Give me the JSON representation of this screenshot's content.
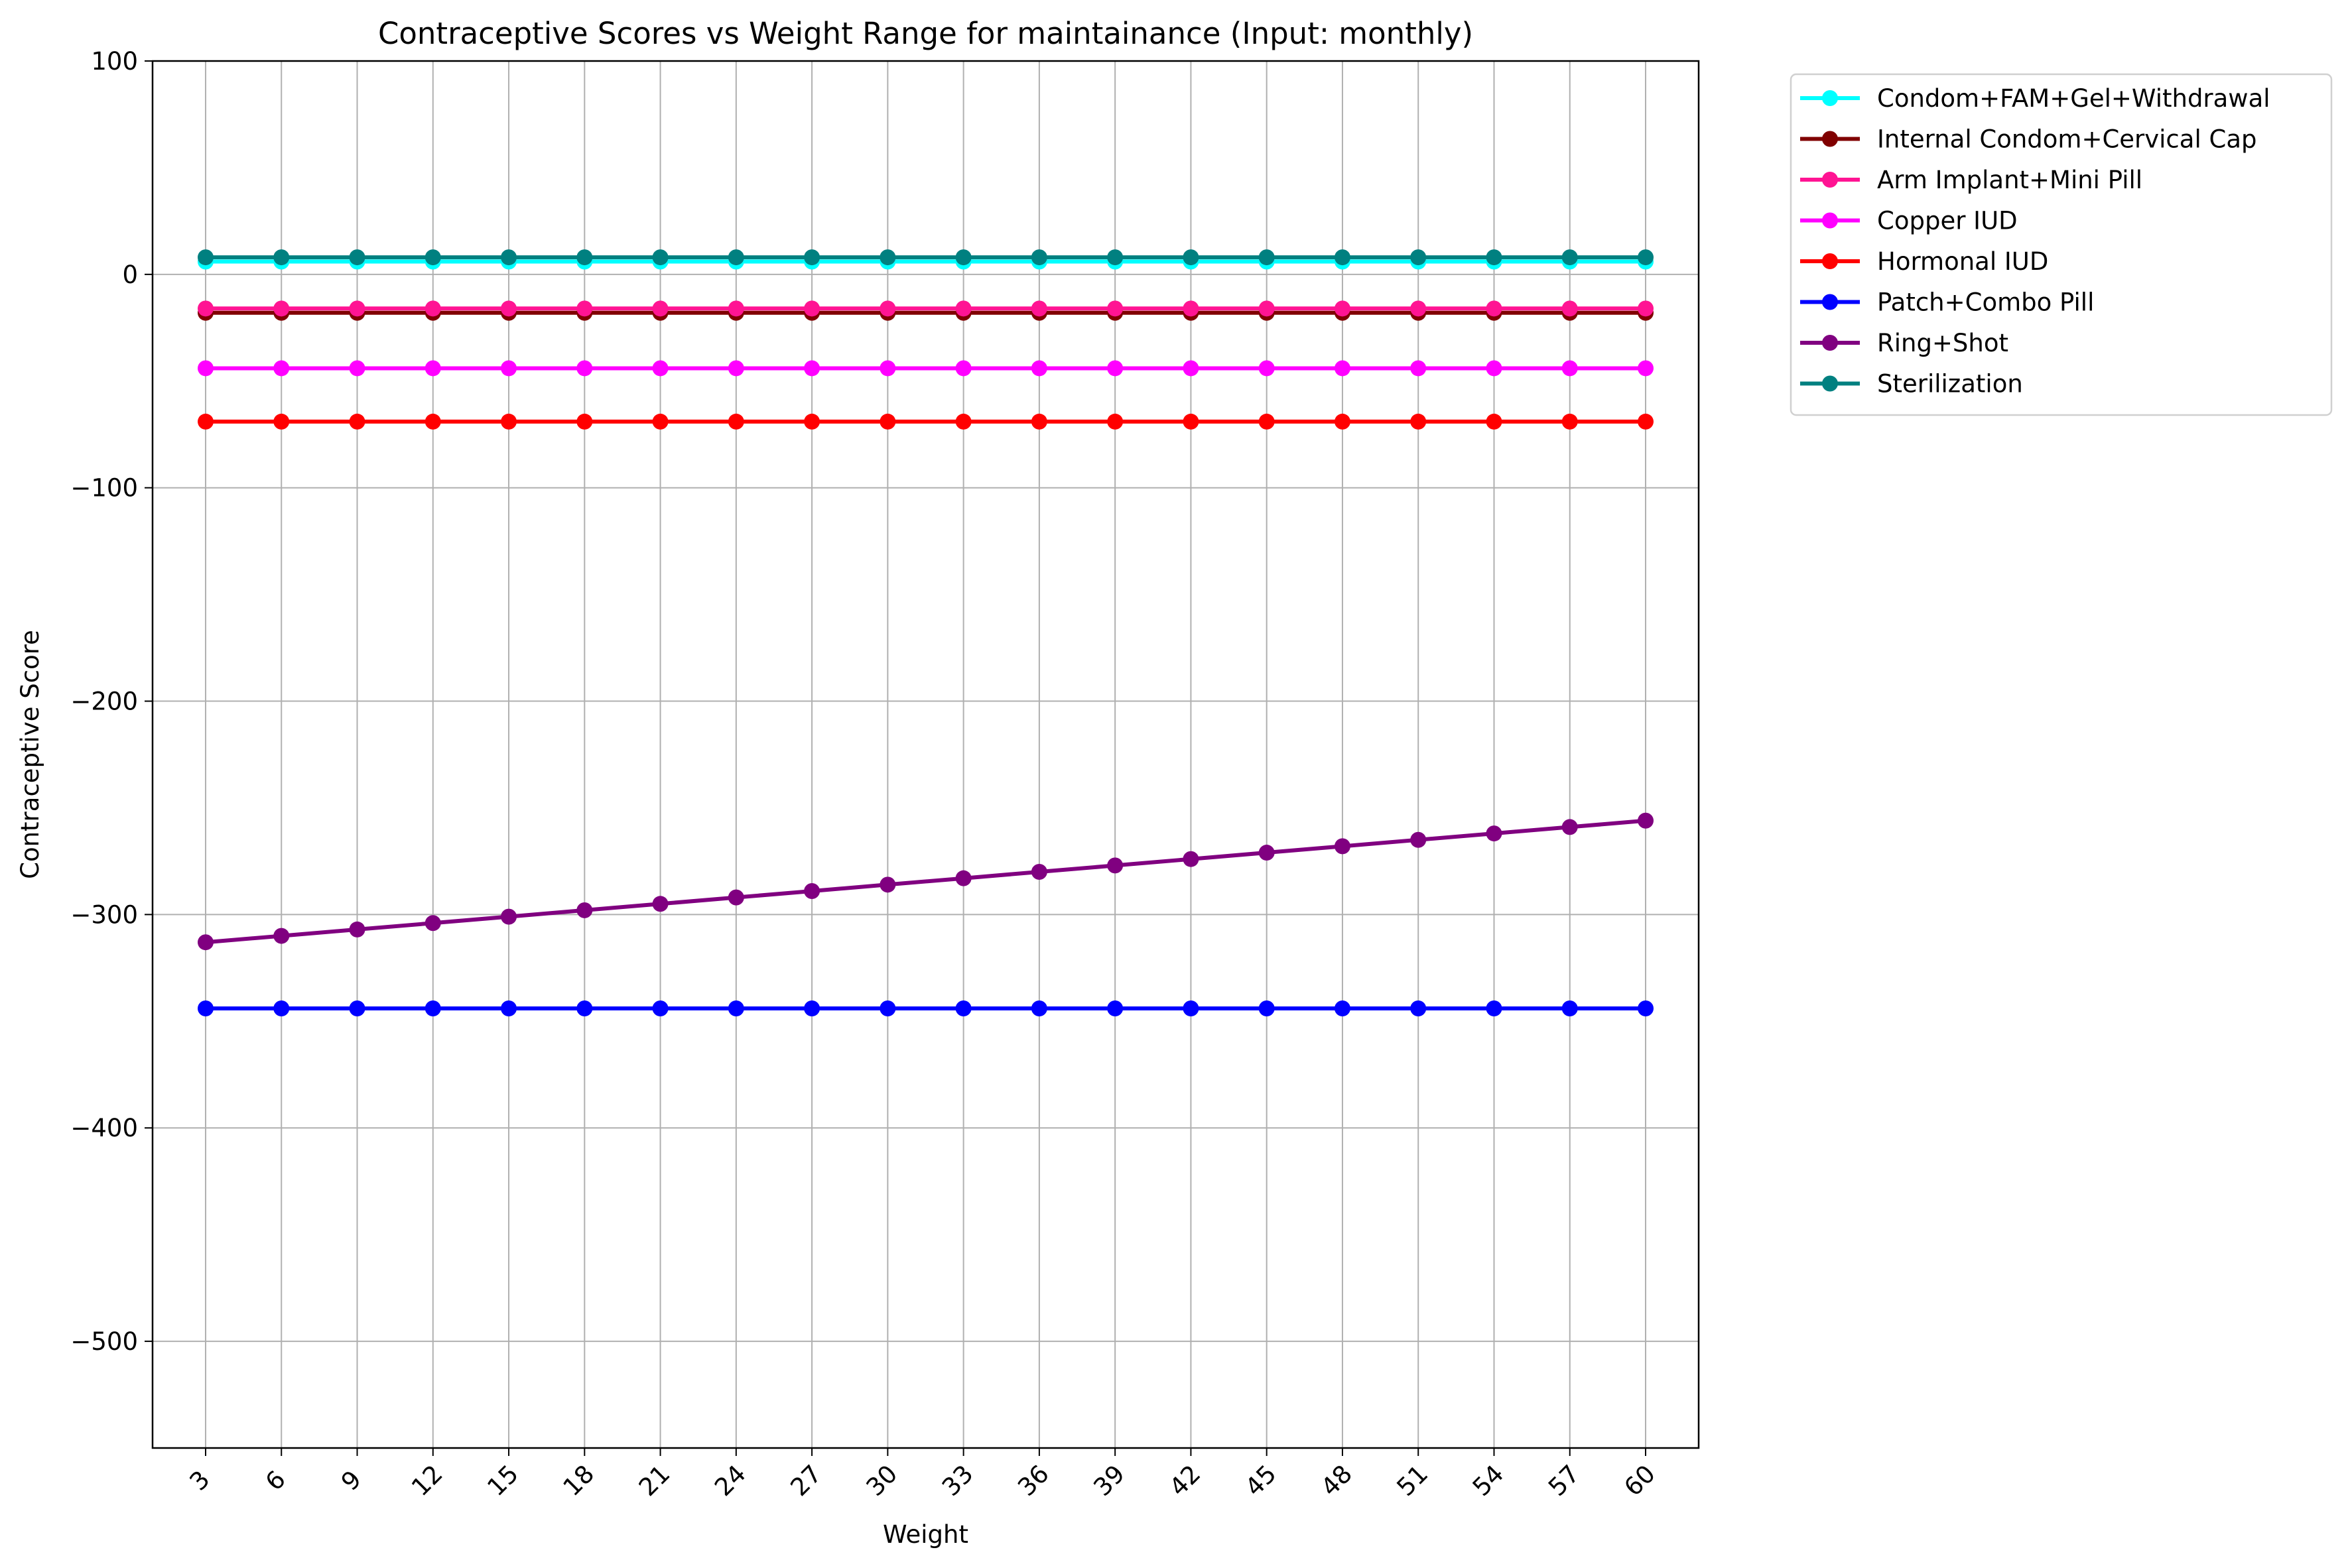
{
  "chart_data": {
    "type": "line",
    "title": "Contraceptive Scores vs Weight Range for maintainance (Input: monthly)",
    "xlabel": "Weight",
    "ylabel": "Contraceptive Score",
    "x": [
      3,
      6,
      9,
      12,
      15,
      18,
      21,
      24,
      27,
      30,
      33,
      36,
      39,
      42,
      45,
      48,
      51,
      54,
      57,
      60
    ],
    "x_tick_labels": [
      "3",
      "6",
      "9",
      "12",
      "15",
      "18",
      "21",
      "24",
      "27",
      "30",
      "33",
      "36",
      "39",
      "42",
      "45",
      "48",
      "51",
      "54",
      "57",
      "60"
    ],
    "x_tick_rotation": 45,
    "ylim": [
      -550,
      100
    ],
    "yticks": [
      100,
      0,
      -100,
      -200,
      -300,
      -400,
      -500
    ],
    "y_tick_labels": [
      "100",
      "0",
      "−100",
      "−200",
      "−300",
      "−400",
      "−500"
    ],
    "grid": true,
    "legend_position": "outside-top-right",
    "series": [
      {
        "name": "Condom+FAM+Gel+Withdrawal",
        "color": "#00ffff",
        "values": [
          6,
          6,
          6,
          6,
          6,
          6,
          6,
          6,
          6,
          6,
          6,
          6,
          6,
          6,
          6,
          6,
          6,
          6,
          6,
          6
        ]
      },
      {
        "name": "Internal Condom+Cervical Cap",
        "color": "#800000",
        "values": [
          -18,
          -18,
          -18,
          -18,
          -18,
          -18,
          -18,
          -18,
          -18,
          -18,
          -18,
          -18,
          -18,
          -18,
          -18,
          -18,
          -18,
          -18,
          -18,
          -18
        ]
      },
      {
        "name": "Arm Implant+Mini Pill",
        "color": "#ff1493",
        "values": [
          -16,
          -16,
          -16,
          -16,
          -16,
          -16,
          -16,
          -16,
          -16,
          -16,
          -16,
          -16,
          -16,
          -16,
          -16,
          -16,
          -16,
          -16,
          -16,
          -16
        ]
      },
      {
        "name": "Copper IUD",
        "color": "#ff00ff",
        "values": [
          -44,
          -44,
          -44,
          -44,
          -44,
          -44,
          -44,
          -44,
          -44,
          -44,
          -44,
          -44,
          -44,
          -44,
          -44,
          -44,
          -44,
          -44,
          -44,
          -44
        ]
      },
      {
        "name": "Hormonal IUD",
        "color": "#ff0000",
        "values": [
          -69,
          -69,
          -69,
          -69,
          -69,
          -69,
          -69,
          -69,
          -69,
          -69,
          -69,
          -69,
          -69,
          -69,
          -69,
          -69,
          -69,
          -69,
          -69,
          -69
        ]
      },
      {
        "name": "Patch+Combo Pill",
        "color": "#0000ff",
        "values": [
          -344,
          -344,
          -344,
          -344,
          -344,
          -344,
          -344,
          -344,
          -344,
          -344,
          -344,
          -344,
          -344,
          -344,
          -344,
          -344,
          -344,
          -344,
          -344,
          -344
        ]
      },
      {
        "name": "Ring+Shot",
        "color": "#800080",
        "values": [
          -313,
          -310,
          -307,
          -304,
          -301,
          -298,
          -295,
          -292,
          -289,
          -286,
          -283,
          -280,
          -277,
          -274,
          -271,
          -268,
          -265,
          -262,
          -259,
          -256
        ]
      },
      {
        "name": "Sterilization",
        "color": "#008080",
        "values": [
          8,
          8,
          8,
          8,
          8,
          8,
          8,
          8,
          8,
          8,
          8,
          8,
          8,
          8,
          8,
          8,
          8,
          8,
          8,
          8
        ]
      }
    ]
  }
}
